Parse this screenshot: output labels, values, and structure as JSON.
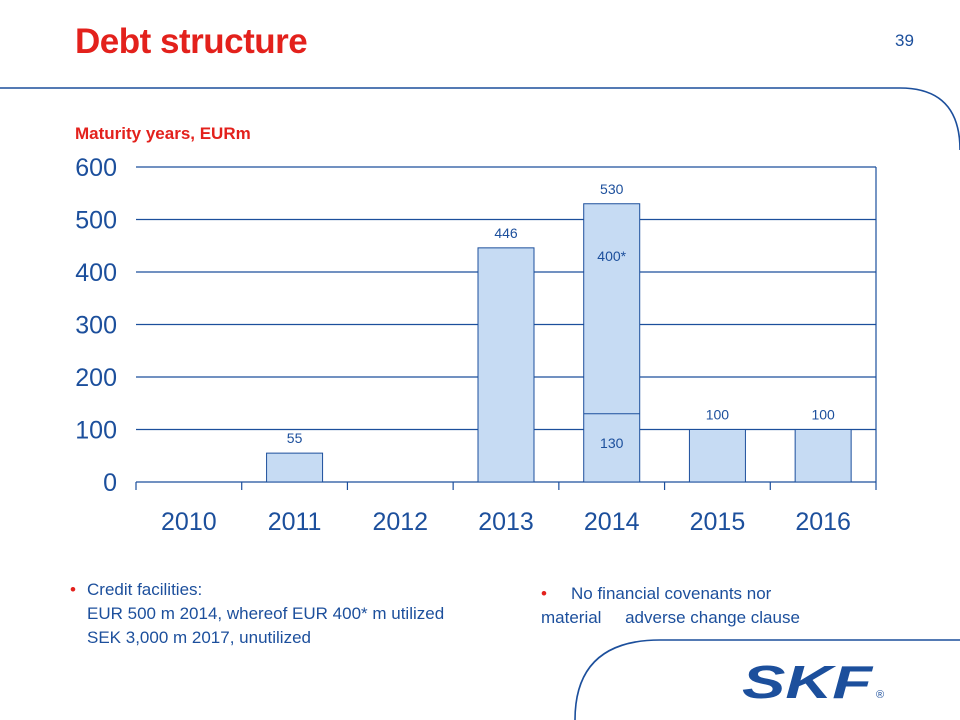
{
  "header": {
    "title": "Debt structure",
    "page_number": "39",
    "subtitle": "Maturity years, EURm"
  },
  "colors": {
    "title_red": "#e3211c",
    "text_blue": "#1c4f9c",
    "bar_fill": "#c6dbf3",
    "bar_stroke": "#1c4f9c",
    "logo_blue": "#1c4f9c"
  },
  "chart_data": {
    "type": "bar",
    "categories": [
      "2010",
      "2011",
      "2012",
      "2013",
      "2014",
      "2015",
      "2016"
    ],
    "values": [
      0,
      55,
      0,
      446,
      530,
      100,
      100
    ],
    "data_labels": [
      "",
      "55",
      "",
      "446",
      "530",
      "100",
      "100"
    ],
    "stacked_2014": {
      "lower": 130,
      "upper": 400,
      "lower_label": "130",
      "upper_label": "400*"
    },
    "yticks": [
      "0",
      "100",
      "200",
      "300",
      "400",
      "500",
      "600"
    ],
    "ylim": [
      0,
      600
    ],
    "grid": true
  },
  "bullets": {
    "left": {
      "lines": [
        "Credit facilities:",
        "EUR 500 m 2014, whereof EUR 400* m utilized",
        "SEK 3,000 m 2017, unutilized"
      ]
    },
    "right": {
      "line1": "No financial covenants nor",
      "line2": "material     adverse change clause"
    }
  },
  "logo": {
    "text": "SKF",
    "mark": "®"
  }
}
